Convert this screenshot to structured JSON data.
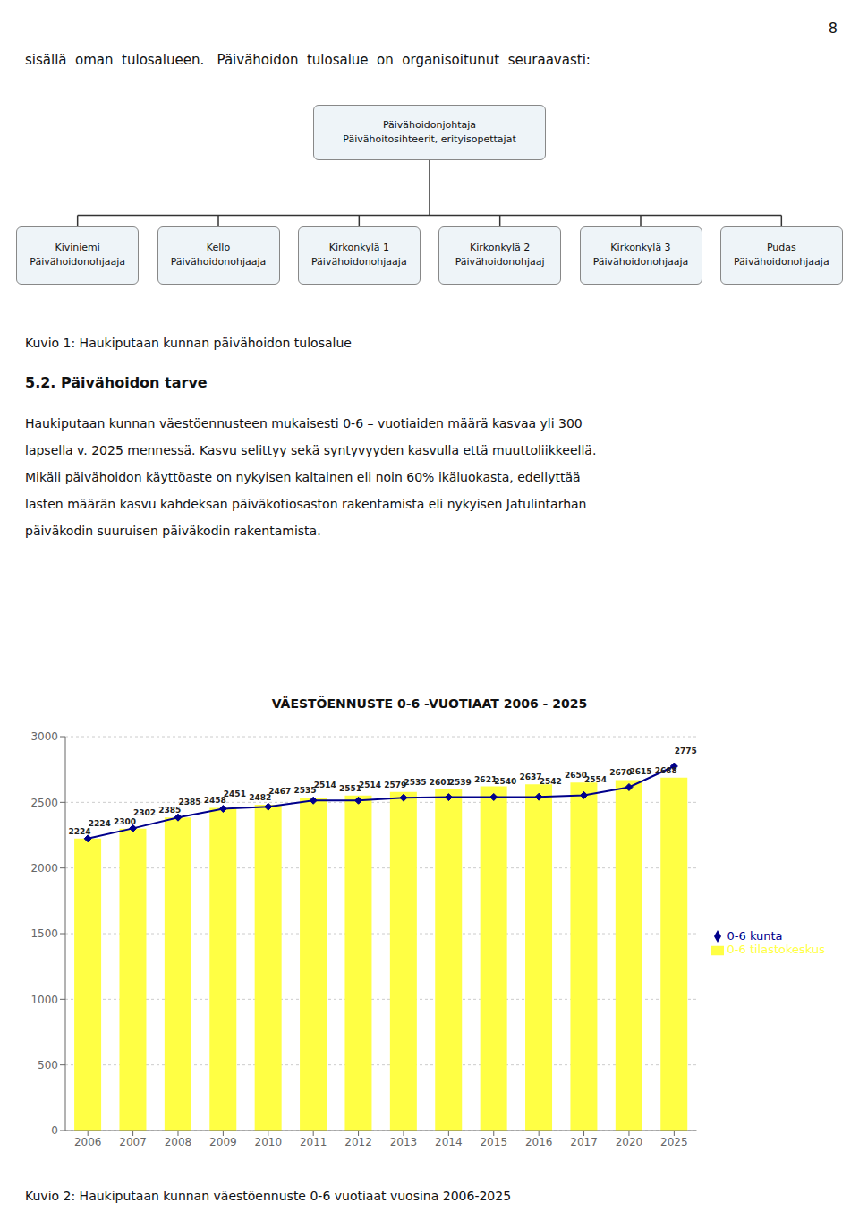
{
  "page": {
    "page_number": "8",
    "intro_text": "sisällä  oman  tulosalueen.   Päivähoidon  tulosalue  on  organisoitunut  seuraavasti:",
    "org_chart": {
      "root": [
        "Päivähoidonjohtaja",
        "Päivähoitosihteerit, erityisopettajat"
      ],
      "children": [
        [
          "Kiviniemi",
          "Päivähoidonohjaaja"
        ],
        [
          "Kello",
          "Päivähoidonohjaaja"
        ],
        [
          "Kirkonkylä 1",
          "Päivähoidonohjaaja"
        ],
        [
          "Kirkonkylä 2",
          "Päivähoidonohjaaj"
        ],
        [
          "Kirkonkylä 3",
          "Päivähoidonohjaaja"
        ],
        [
          "Pudas",
          "Päivähoidonohjaaja"
        ]
      ]
    },
    "captions": [
      "Kuvio 1: Haukiputaan kunnan päivähoidon tulosalue",
      "Kuvio 2: Haukiputaan kunnan väestöennuste 0-6 vuotiaat vuosina 2006-2025"
    ],
    "section_heading": "5.2. Päivähoidon tarve",
    "body_text": [
      "Haukiputaan kunnan väestöennusteen mukaisesti 0-6 – vuotiaiden määrä kasvaa yli 300",
      "lapsella v. 2025 mennessä. Kasvu selittyy sekä syntyvyyden kasvulla että muuttoliikkeellä.",
      "Mikäli päivähoidon käyttöaste on nykyisen kaltainen eli noin 60% ikäluokasta, edellyttää",
      "lasten määrän kasvu kahdeksan päiväkotiosaston rakentamista eli nykyisen Jatulintarhan",
      "päiväkodin suuruisen päiväkodin rakentamista."
    ]
  },
  "chart_data": {
    "type": "bar",
    "title": "VÄESTÖENNUSTE 0-6 -VUOTIAAT 2006 - 2025",
    "categories": [
      "2006",
      "2007",
      "2008",
      "2009",
      "2010",
      "2011",
      "2012",
      "2013",
      "2014",
      "2015",
      "2016",
      "2017",
      "2020",
      "2025"
    ],
    "series": [
      {
        "name": "0-6 tilastokeskus",
        "type": "bar",
        "color": "#FFFF44",
        "values": [
          2224,
          2300,
          2385,
          2458,
          2482,
          2535,
          2551,
          2579,
          2601,
          2621,
          2637,
          2650,
          2670,
          2688
        ]
      },
      {
        "name": "0-6 kunta",
        "type": "line",
        "color": "#00008B",
        "marker": "diamond",
        "values": [
          2224,
          2302,
          2385,
          2451,
          2467,
          2514,
          2514,
          2535,
          2539,
          2540,
          2542,
          2554,
          2615,
          2775
        ]
      }
    ],
    "ylim": [
      0,
      3000
    ],
    "yticks": [
      0,
      500,
      1000,
      1500,
      2000,
      2500,
      3000
    ],
    "grid": true,
    "legend": "right",
    "data_labels": true
  }
}
